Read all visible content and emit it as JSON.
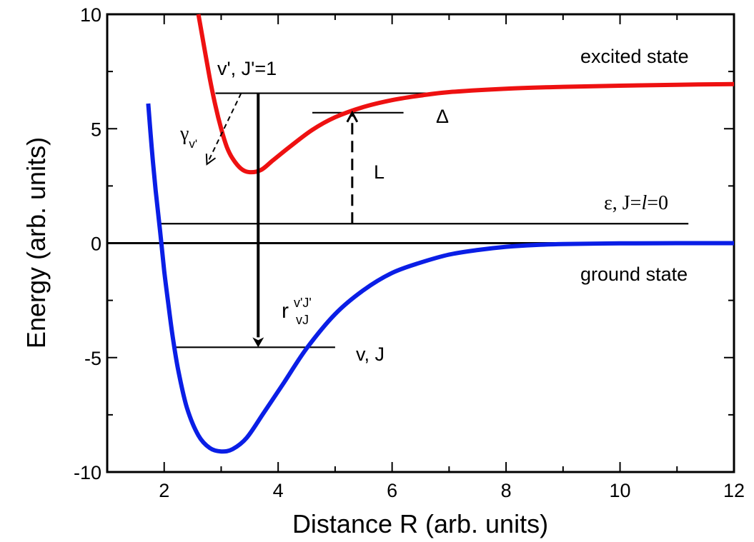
{
  "chart_data": {
    "type": "line",
    "xlabel": "Distance R (arb. units)",
    "ylabel": "Energy (arb. units)",
    "xlim": [
      1,
      12
    ],
    "ylim": [
      -10,
      10
    ],
    "x_ticks": [
      2,
      4,
      6,
      8,
      10,
      12
    ],
    "y_ticks": [
      -10,
      -5,
      0,
      5,
      10
    ],
    "x_tick_labels": [
      "2",
      "4",
      "6",
      "8",
      "10",
      "12"
    ],
    "y_tick_labels": [
      "-10",
      "-5",
      "0",
      "5",
      "10"
    ],
    "grid": false,
    "series": [
      {
        "name": "ground state",
        "color": "#0a1ee6",
        "x": [
          1.72,
          1.78,
          1.85,
          1.93,
          2.0,
          2.07,
          2.15,
          2.25,
          2.4,
          2.6,
          2.8,
          3.0,
          3.2,
          3.45,
          3.75,
          4.1,
          4.5,
          5.0,
          5.5,
          6.0,
          6.5,
          7.0,
          7.5,
          8.0,
          8.5,
          9.0,
          10.0,
          11.0,
          12.0
        ],
        "y": [
          6.1,
          4.2,
          2.3,
          0.5,
          -1.2,
          -2.6,
          -4.1,
          -5.6,
          -7.2,
          -8.4,
          -8.95,
          -9.1,
          -9.0,
          -8.5,
          -7.4,
          -6.1,
          -4.6,
          -3.1,
          -2.05,
          -1.3,
          -0.85,
          -0.5,
          -0.3,
          -0.16,
          -0.08,
          -0.04,
          -0.01,
          0.0,
          0.0
        ]
      },
      {
        "name": "excited state",
        "color": "#ee1111",
        "x": [
          2.6,
          2.7,
          2.8,
          2.9,
          3.0,
          3.1,
          3.2,
          3.35,
          3.5,
          3.7,
          3.9,
          4.2,
          4.6,
          5.0,
          5.5,
          6.0,
          6.5,
          7.0,
          8.0,
          9.0,
          10.0,
          11.0,
          12.0
        ],
        "y": [
          10.0,
          8.6,
          7.2,
          6.0,
          5.0,
          4.2,
          3.7,
          3.25,
          3.1,
          3.2,
          3.6,
          4.2,
          4.95,
          5.5,
          5.95,
          6.25,
          6.45,
          6.6,
          6.75,
          6.83,
          6.88,
          6.92,
          6.95
        ]
      }
    ],
    "levels": [
      {
        "name": "v', J'=1",
        "y": 6.55,
        "x_from": 2.9,
        "x_to": 6.8
      },
      {
        "name": "Delta level",
        "y": 5.7,
        "x_from": 4.6,
        "x_to": 6.2
      },
      {
        "name": "epsilon, J=l=0",
        "y": 0.85,
        "x_from": 1.9,
        "x_to": 11.2
      },
      {
        "name": "ground state zero",
        "y": 0.0,
        "x_from": 1.0,
        "x_to": 12.0
      },
      {
        "name": "v, J",
        "y": -4.55,
        "x_from": 2.15,
        "x_to": 5.0
      }
    ],
    "arrows": [
      {
        "name": "decay r",
        "style": "solid",
        "x1": 3.65,
        "y1": 6.55,
        "x2": 3.65,
        "y2": -4.55
      },
      {
        "name": "laser L",
        "style": "dashed",
        "x1": 5.3,
        "y1": 0.85,
        "x2": 5.3,
        "y2": 5.7
      },
      {
        "name": "gamma v'",
        "style": "dashed",
        "x1": 3.35,
        "y1": 6.55,
        "x2": 2.75,
        "y2": 3.45
      }
    ]
  },
  "annotations": {
    "excited_state": "excited state",
    "ground_state": "ground state",
    "vprime_label": "v', J'=1",
    "delta": "Δ",
    "gamma": "γ",
    "gamma_sub": "v'",
    "laser": "L",
    "eps_prefix": "ε, J=",
    "eps_l": "l",
    "eps_suffix": "=0",
    "r_main": "r",
    "r_sup": "v'J'",
    "r_sub": "vJ",
    "vj_label": "v, J"
  }
}
